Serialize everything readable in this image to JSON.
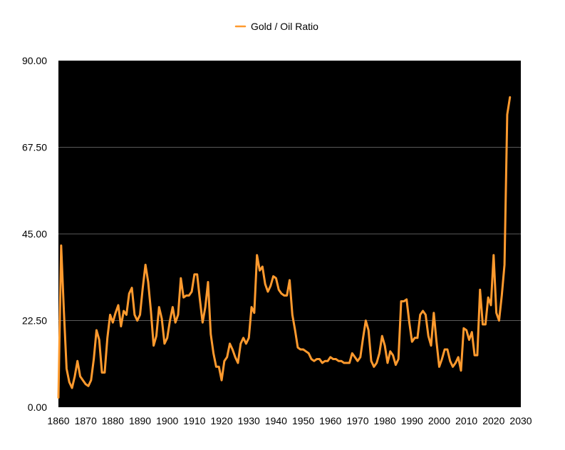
{
  "chart_data": {
    "type": "line",
    "legend_position": "top-center",
    "grid": true,
    "xlim": [
      1860,
      2030
    ],
    "ylim": [
      0,
      90
    ],
    "x_ticks": [
      "1860",
      "1870",
      "1880",
      "1890",
      "1900",
      "1910",
      "1920",
      "1930",
      "1940",
      "1950",
      "1960",
      "1970",
      "1980",
      "1990",
      "2000",
      "2010",
      "2020",
      "2030"
    ],
    "y_ticks": [
      "0.00",
      "22.50",
      "45.00",
      "67.50",
      "90.00"
    ],
    "background_color": "#000000",
    "series": [
      {
        "name": "Gold / Oil Ratio",
        "color": "#ff9a2e",
        "points": [
          [
            1860,
            2.5
          ],
          [
            1861,
            42
          ],
          [
            1862,
            25
          ],
          [
            1863,
            10
          ],
          [
            1864,
            6.5
          ],
          [
            1865,
            5
          ],
          [
            1866,
            8
          ],
          [
            1867,
            12
          ],
          [
            1868,
            8
          ],
          [
            1869,
            7
          ],
          [
            1870,
            6
          ],
          [
            1871,
            5.5
          ],
          [
            1872,
            7
          ],
          [
            1873,
            12.5
          ],
          [
            1874,
            20
          ],
          [
            1875,
            17.5
          ],
          [
            1876,
            9
          ],
          [
            1877,
            9
          ],
          [
            1878,
            18
          ],
          [
            1879,
            24
          ],
          [
            1880,
            22
          ],
          [
            1881,
            24.5
          ],
          [
            1882,
            26.5
          ],
          [
            1883,
            21
          ],
          [
            1884,
            25
          ],
          [
            1885,
            24
          ],
          [
            1886,
            29.5
          ],
          [
            1887,
            31
          ],
          [
            1888,
            24
          ],
          [
            1889,
            22.5
          ],
          [
            1890,
            24
          ],
          [
            1891,
            31
          ],
          [
            1892,
            37
          ],
          [
            1893,
            32.5
          ],
          [
            1894,
            25
          ],
          [
            1895,
            16
          ],
          [
            1896,
            18.5
          ],
          [
            1897,
            26
          ],
          [
            1898,
            23
          ],
          [
            1899,
            16.5
          ],
          [
            1900,
            18
          ],
          [
            1901,
            22.5
          ],
          [
            1902,
            26
          ],
          [
            1903,
            22
          ],
          [
            1904,
            24
          ],
          [
            1905,
            33.5
          ],
          [
            1906,
            28.5
          ],
          [
            1907,
            29
          ],
          [
            1908,
            29
          ],
          [
            1909,
            30
          ],
          [
            1910,
            34.5
          ],
          [
            1911,
            34.5
          ],
          [
            1912,
            28
          ],
          [
            1913,
            22
          ],
          [
            1914,
            26
          ],
          [
            1915,
            32.5
          ],
          [
            1916,
            19
          ],
          [
            1917,
            14
          ],
          [
            1918,
            10.5
          ],
          [
            1919,
            10.5
          ],
          [
            1920,
            7
          ],
          [
            1921,
            12
          ],
          [
            1922,
            13
          ],
          [
            1923,
            16.5
          ],
          [
            1924,
            15
          ],
          [
            1925,
            13
          ],
          [
            1926,
            11.5
          ],
          [
            1927,
            16.5
          ],
          [
            1928,
            18
          ],
          [
            1929,
            16.5
          ],
          [
            1930,
            18
          ],
          [
            1931,
            26
          ],
          [
            1932,
            24.5
          ],
          [
            1933,
            39.5
          ],
          [
            1934,
            35.5
          ],
          [
            1935,
            36.5
          ],
          [
            1936,
            32
          ],
          [
            1937,
            30
          ],
          [
            1938,
            31.5
          ],
          [
            1939,
            34
          ],
          [
            1940,
            33.5
          ],
          [
            1941,
            30.5
          ],
          [
            1942,
            29.5
          ],
          [
            1943,
            29
          ],
          [
            1944,
            29
          ],
          [
            1945,
            33
          ],
          [
            1946,
            24
          ],
          [
            1947,
            20
          ],
          [
            1948,
            15.5
          ],
          [
            1949,
            15
          ],
          [
            1950,
            15
          ],
          [
            1951,
            14.5
          ],
          [
            1952,
            14
          ],
          [
            1953,
            12.5
          ],
          [
            1954,
            12
          ],
          [
            1955,
            12.5
          ],
          [
            1956,
            12.5
          ],
          [
            1957,
            11.5
          ],
          [
            1958,
            12
          ],
          [
            1959,
            12
          ],
          [
            1960,
            13
          ],
          [
            1961,
            12.5
          ],
          [
            1962,
            12.5
          ],
          [
            1963,
            12
          ],
          [
            1964,
            12
          ],
          [
            1965,
            11.5
          ],
          [
            1966,
            11.5
          ],
          [
            1967,
            11.5
          ],
          [
            1968,
            14
          ],
          [
            1969,
            13
          ],
          [
            1970,
            12
          ],
          [
            1971,
            13
          ],
          [
            1972,
            18
          ],
          [
            1973,
            22.5
          ],
          [
            1974,
            20
          ],
          [
            1975,
            12
          ],
          [
            1976,
            10.5
          ],
          [
            1977,
            11.5
          ],
          [
            1978,
            14
          ],
          [
            1979,
            18.5
          ],
          [
            1980,
            16
          ],
          [
            1981,
            11.5
          ],
          [
            1982,
            14.5
          ],
          [
            1983,
            13.5
          ],
          [
            1984,
            11
          ],
          [
            1985,
            12.5
          ],
          [
            1986,
            27.5
          ],
          [
            1987,
            27.5
          ],
          [
            1988,
            28
          ],
          [
            1989,
            22
          ],
          [
            1990,
            17
          ],
          [
            1991,
            18
          ],
          [
            1992,
            18
          ],
          [
            1993,
            24
          ],
          [
            1994,
            25
          ],
          [
            1995,
            24
          ],
          [
            1996,
            18.5
          ],
          [
            1997,
            16
          ],
          [
            1998,
            24.5
          ],
          [
            1999,
            17
          ],
          [
            2000,
            10.5
          ],
          [
            2001,
            12.5
          ],
          [
            2002,
            15
          ],
          [
            2003,
            15
          ],
          [
            2004,
            12
          ],
          [
            2005,
            10.5
          ],
          [
            2006,
            11.5
          ],
          [
            2007,
            13
          ],
          [
            2008,
            9.5
          ],
          [
            2009,
            20.5
          ],
          [
            2010,
            20
          ],
          [
            2011,
            17.5
          ],
          [
            2012,
            19.5
          ],
          [
            2013,
            13.5
          ],
          [
            2014,
            13.5
          ],
          [
            2015,
            30.5
          ],
          [
            2016,
            21.5
          ],
          [
            2017,
            21.5
          ],
          [
            2018,
            28.5
          ],
          [
            2019,
            26.5
          ],
          [
            2020,
            39.5
          ],
          [
            2021,
            24.5
          ],
          [
            2022,
            22.5
          ],
          [
            2023,
            29
          ],
          [
            2024,
            37
          ],
          [
            2025,
            76
          ],
          [
            2026,
            80.5
          ]
        ]
      }
    ]
  }
}
